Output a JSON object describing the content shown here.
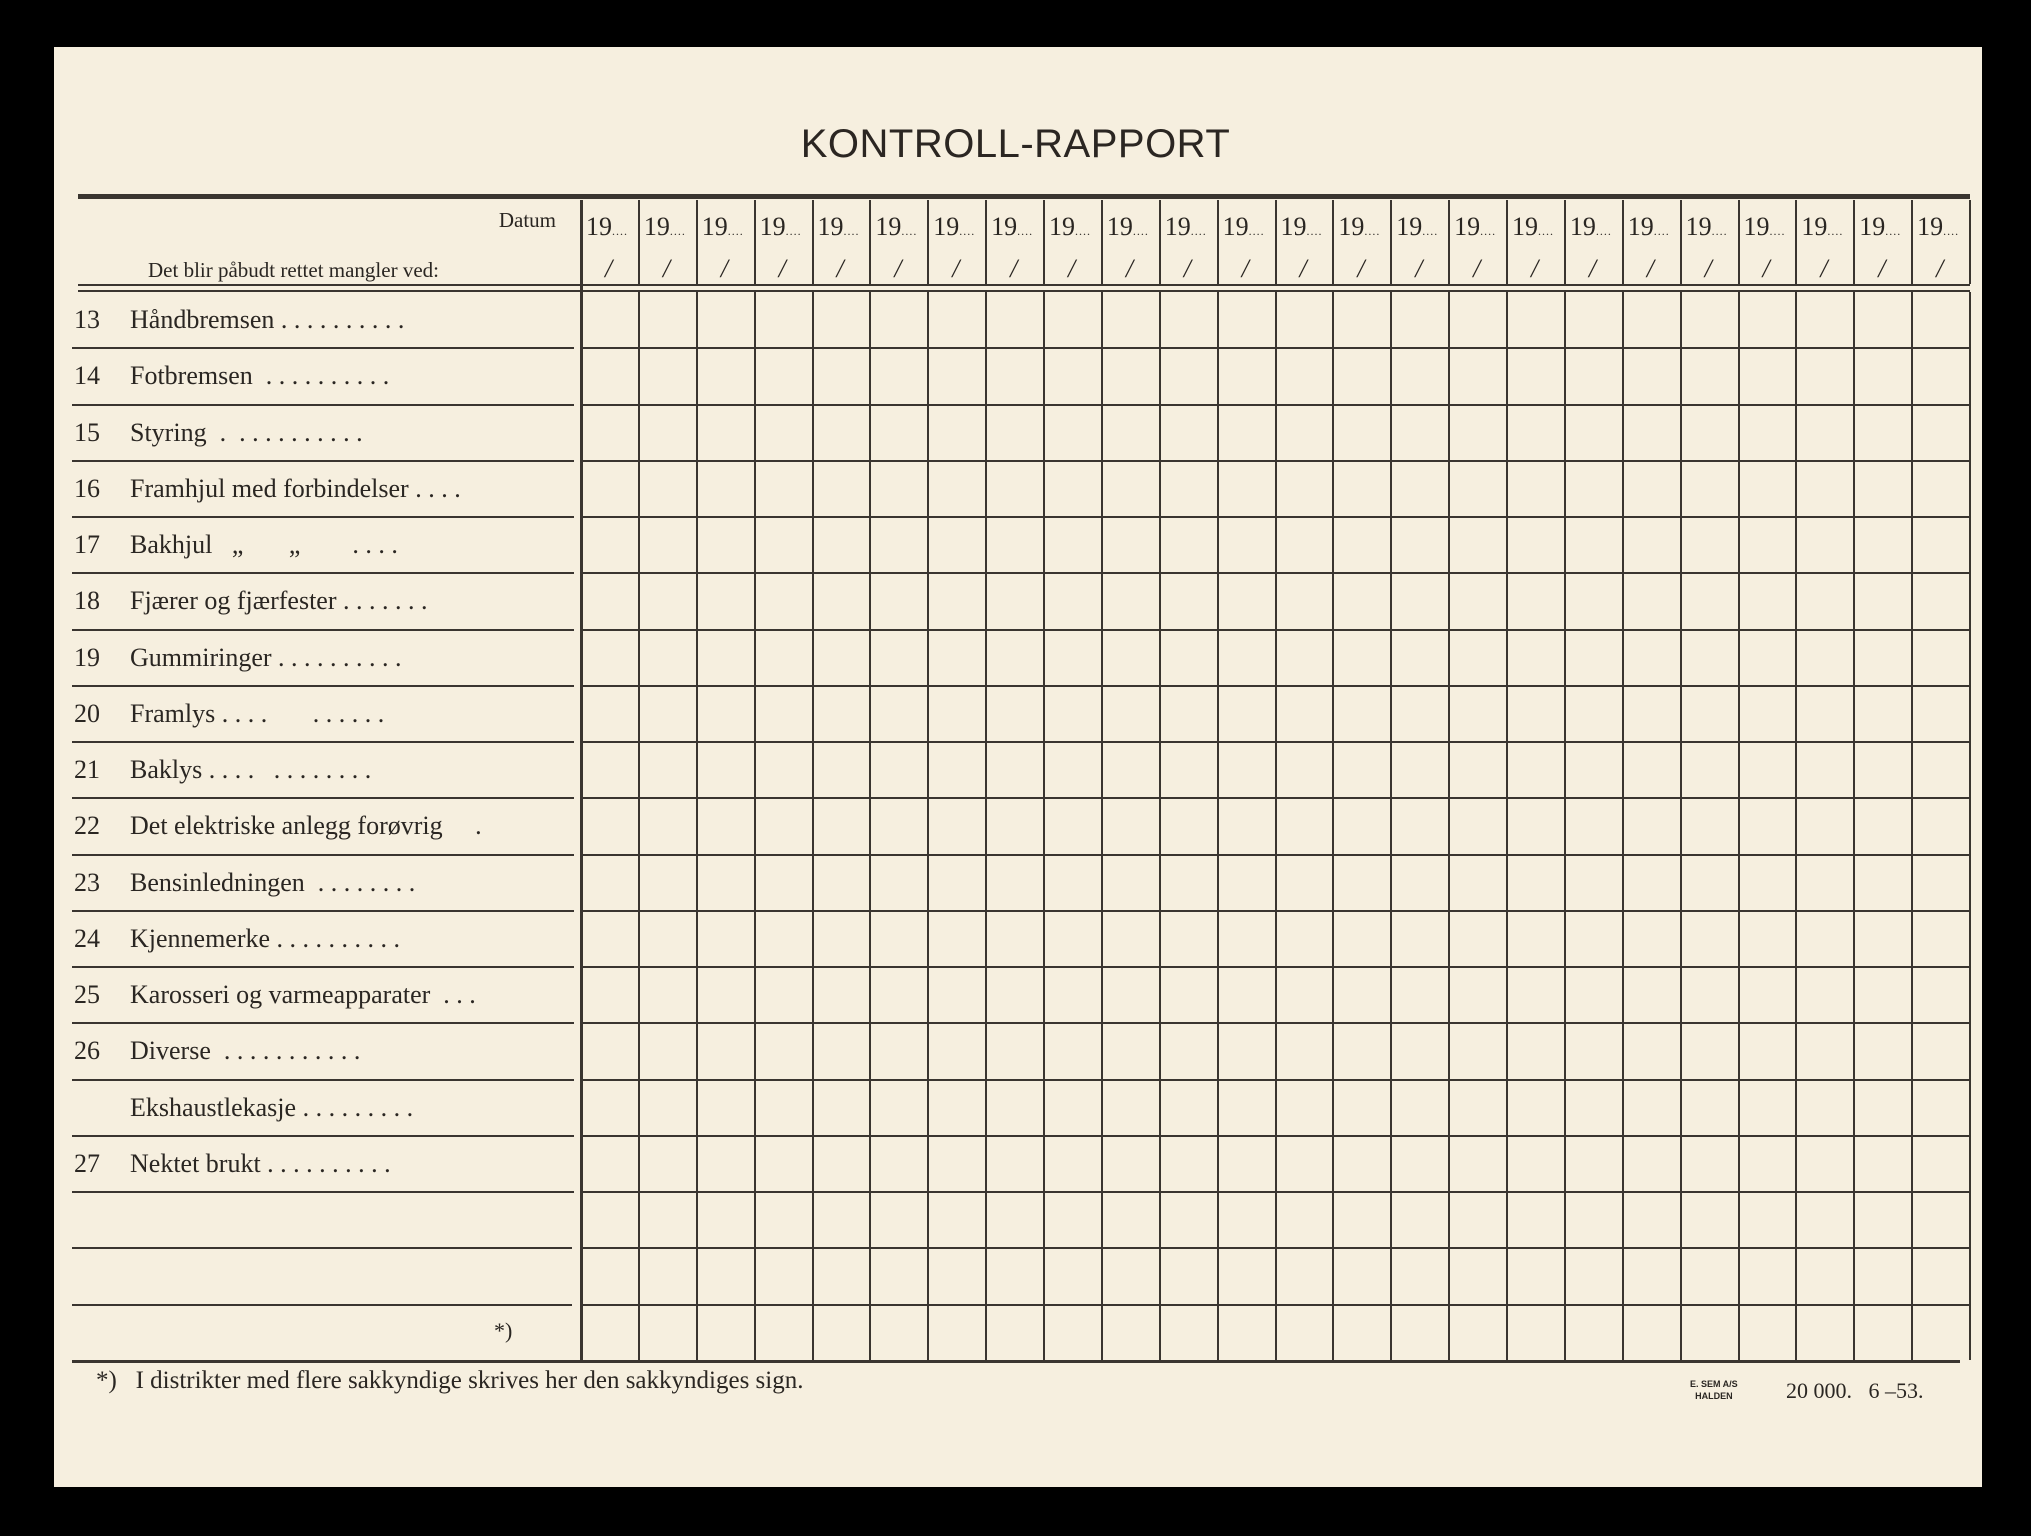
{
  "title": "KONTROLL-RAPPORT",
  "header": {
    "datum_label": "Datum",
    "subheading": "Det blir påbudt rettet mangler ved:",
    "date_prefix": "19",
    "date_dots": "....",
    "slash": "/",
    "column_count": 24
  },
  "rows": [
    {
      "num": "13",
      "label": "Håndbremsen . . . . . . . . . ."
    },
    {
      "num": "14",
      "label": "Fotbremsen  . . . . . . . . . ."
    },
    {
      "num": "15",
      "label": "Styring  .  . . . . . . . . . ."
    },
    {
      "num": "16",
      "label": "Framhjul med forbindelser . . . ."
    },
    {
      "num": "17",
      "label": "Bakhjul   „       „        . . . ."
    },
    {
      "num": "18",
      "label": "Fjærer og fjærfester . . . . . . ."
    },
    {
      "num": "19",
      "label": "Gummiringer . . . . . . . . . ."
    },
    {
      "num": "20",
      "label": "Framlys . . . .       . . . . . ."
    },
    {
      "num": "21",
      "label": "Baklys . . . .   . . . . . . . ."
    },
    {
      "num": "22",
      "label": "Det elektriske anlegg forøvrig     ."
    },
    {
      "num": "23",
      "label": "Bensinledningen  . . . . . . . ."
    },
    {
      "num": "24",
      "label": "Kjennemerke . . . . . . . . . ."
    },
    {
      "num": "25",
      "label": "Karosseri og varmeapparater  . . ."
    },
    {
      "num": "26",
      "label": "Diverse  . . . . . . . . . . ."
    },
    {
      "num": "",
      "label": "Ekshaustlekasje . . . . . . . . ."
    },
    {
      "num": "27",
      "label": "Nektet brukt . . . . . . . . . ."
    },
    {
      "num": "",
      "label": ""
    },
    {
      "num": "",
      "label": ""
    },
    {
      "num": "",
      "label": ""
    }
  ],
  "signature_marker": "*)",
  "footer": {
    "footnote": "*)   I distrikter med flere sakkyndige skrives her den sakkyndiges sign.",
    "printer_line1": "E. SEM A/S",
    "printer_line2": "HALDEN",
    "print_info": "20 000.   6 –53."
  }
}
